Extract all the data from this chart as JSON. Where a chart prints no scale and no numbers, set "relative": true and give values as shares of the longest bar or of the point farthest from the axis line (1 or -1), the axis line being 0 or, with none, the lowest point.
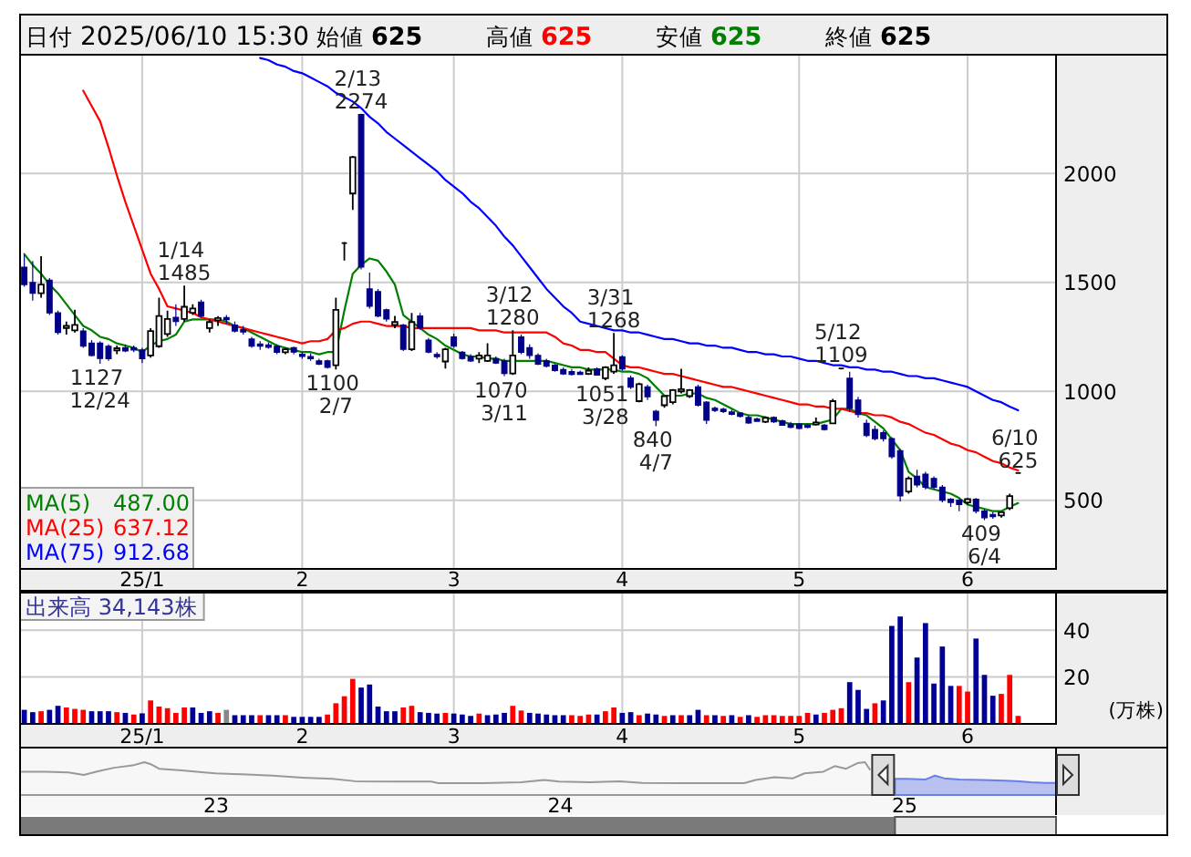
{
  "chart_data": [
    {
      "type": "other",
      "annotations": [
        "日付",
        "2025/06/10 15:30",
        "始値",
        "625",
        "高値",
        "625",
        "安値",
        "625",
        "終値",
        "625"
      ]
    },
    {
      "type": "candlestick",
      "categories": [
        null,
        null,
        null,
        null,
        null,
        null,
        null,
        null,
        null,
        null,
        null,
        null,
        null,
        null,
        "25/1",
        null,
        null,
        null,
        null,
        null,
        null,
        null,
        null,
        null,
        null,
        null,
        null,
        null,
        null,
        null,
        null,
        null,
        null,
        "2",
        null,
        null,
        null,
        null,
        null,
        null,
        null,
        null,
        null,
        null,
        null,
        null,
        null,
        null,
        null,
        null,
        null,
        "3",
        null,
        null,
        null,
        null,
        null,
        null,
        null,
        null,
        null,
        null,
        null,
        null,
        null,
        null,
        null,
        null,
        null,
        null,
        null,
        "4",
        null,
        null,
        null,
        null,
        null,
        null,
        null,
        null,
        null,
        null,
        null,
        null,
        null,
        null,
        null,
        null,
        null,
        null,
        null,
        null,
        "5",
        null,
        null,
        null,
        null,
        null,
        null,
        null,
        null,
        null,
        null,
        null,
        null,
        null,
        null,
        null,
        null,
        null,
        null,
        null,
        "6",
        null,
        null,
        null,
        null,
        null,
        null
      ],
      "ohlc": [
        [
          1570,
          1626,
          1480,
          1490
        ],
        [
          1500,
          1598,
          1416,
          1450
        ],
        [
          1450,
          1620,
          1430,
          1490
        ],
        [
          1510,
          1520,
          1350,
          1360
        ],
        [
          1360,
          1370,
          1260,
          1270
        ],
        [
          1290,
          1320,
          1260,
          1300
        ],
        [
          1280,
          1374,
          1270,
          1305
        ],
        [
          1277,
          1290,
          1200,
          1207
        ],
        [
          1221,
          1235,
          1160,
          1165
        ],
        [
          1221,
          1230,
          1127,
          1151
        ],
        [
          1207,
          1215,
          1140,
          1150
        ],
        [
          1190,
          1210,
          1170,
          1195
        ],
        [
          1200,
          1215,
          1180,
          1185
        ],
        [
          1200,
          1210,
          1180,
          1190
        ],
        [
          1190,
          1200,
          1130,
          1150
        ],
        [
          1165,
          1290,
          1155,
          1277
        ],
        [
          1207,
          1430,
          1200,
          1346
        ],
        [
          1263,
          1370,
          1250,
          1332
        ],
        [
          1340,
          1400,
          1300,
          1320
        ],
        [
          1332,
          1485,
          1320,
          1388
        ],
        [
          1360,
          1400,
          1350,
          1380
        ],
        [
          1410,
          1420,
          1340,
          1346
        ],
        [
          1290,
          1330,
          1270,
          1318
        ],
        [
          1330,
          1345,
          1300,
          1332
        ],
        [
          1335,
          1350,
          1310,
          1332
        ],
        [
          1304,
          1320,
          1270,
          1277
        ],
        [
          1280,
          1300,
          1260,
          1275
        ],
        [
          1240,
          1250,
          1200,
          1207
        ],
        [
          1215,
          1230,
          1190,
          1210
        ],
        [
          1210,
          1225,
          1195,
          1205
        ],
        [
          1207,
          1215,
          1170,
          1179
        ],
        [
          1179,
          1200,
          1170,
          1193
        ],
        [
          1200,
          1205,
          1170,
          1180
        ],
        [
          1170,
          1180,
          1150,
          1160
        ],
        [
          1160,
          1175,
          1140,
          1150
        ],
        [
          1140,
          1150,
          1120,
          1125
        ],
        [
          1140,
          1145,
          1105,
          1110
        ],
        [
          1120,
          1430,
          1100,
          1374
        ],
        [
          1680,
          1685,
          1600,
          1680
        ],
        [
          1908,
          2080,
          1833,
          2075
        ],
        [
          2270,
          2274,
          1560,
          1570
        ],
        [
          1470,
          1545,
          1380,
          1390
        ],
        [
          1458,
          1470,
          1340,
          1346
        ],
        [
          1374,
          1380,
          1320,
          1332
        ],
        [
          1305,
          1346,
          1290,
          1318
        ],
        [
          1304,
          1310,
          1185,
          1193
        ],
        [
          1193,
          1360,
          1185,
          1318
        ],
        [
          1346,
          1360,
          1282,
          1290
        ],
        [
          1235,
          1245,
          1175,
          1180
        ],
        [
          1165,
          1180,
          1150,
          1163
        ],
        [
          1137,
          1200,
          1105,
          1193
        ],
        [
          1250,
          1265,
          1200,
          1207
        ],
        [
          1179,
          1185,
          1145,
          1151
        ],
        [
          1160,
          1170,
          1135,
          1140
        ],
        [
          1150,
          1180,
          1130,
          1165
        ],
        [
          1140,
          1221,
          1135,
          1165
        ],
        [
          1150,
          1160,
          1125,
          1130
        ],
        [
          1140,
          1150,
          1070,
          1082
        ],
        [
          1082,
          1280,
          1075,
          1165
        ],
        [
          1249,
          1260,
          1170,
          1179
        ],
        [
          1200,
          1215,
          1150,
          1165
        ],
        [
          1165,
          1175,
          1120,
          1125
        ],
        [
          1140,
          1150,
          1110,
          1115
        ],
        [
          1120,
          1125,
          1090,
          1095
        ],
        [
          1100,
          1110,
          1075,
          1080
        ],
        [
          1090,
          1102,
          1072,
          1078
        ],
        [
          1085,
          1095,
          1075,
          1080
        ],
        [
          1080,
          1110,
          1075,
          1095
        ],
        [
          1103,
          1110,
          1072,
          1075
        ],
        [
          1060,
          1115,
          1051,
          1110
        ],
        [
          1090,
          1268,
          1080,
          1120
        ],
        [
          1158,
          1165,
          1095,
          1103
        ],
        [
          1061,
          1072,
          1010,
          1019
        ],
        [
          955,
          1040,
          950,
          1033
        ],
        [
          1020,
          1030,
          960,
          975
        ],
        [
          908,
          915,
          840,
          867
        ],
        [
          936,
          980,
          925,
          978
        ],
        [
          950,
          1010,
          940,
          1006
        ],
        [
          1000,
          1103,
          990,
          1010
        ],
        [
          978,
          1010,
          970,
          1006
        ],
        [
          1020,
          1030,
          930,
          936
        ],
        [
          950,
          955,
          850,
          867
        ],
        [
          920,
          930,
          905,
          915
        ],
        [
          915,
          925,
          900,
          910
        ],
        [
          905,
          915,
          890,
          895
        ],
        [
          900,
          905,
          880,
          885
        ],
        [
          880,
          890,
          850,
          855
        ],
        [
          870,
          880,
          860,
          865
        ],
        [
          860,
          885,
          855,
          878
        ],
        [
          880,
          885,
          855,
          860
        ],
        [
          865,
          870,
          842,
          845
        ],
        [
          850,
          860,
          830,
          835
        ],
        [
          850,
          855,
          825,
          830
        ],
        [
          845,
          850,
          830,
          835
        ],
        [
          850,
          880,
          843,
          855
        ],
        [
          845,
          850,
          820,
          825
        ],
        [
          853,
          965,
          850,
          955
        ],
        [
          1105,
          1109,
          1100,
          1105
        ],
        [
          1060,
          1090,
          905,
          922
        ],
        [
          960,
          975,
          880,
          894
        ],
        [
          853,
          870,
          790,
          797
        ],
        [
          825,
          842,
          775,
          783
        ],
        [
          810,
          820,
          770,
          783
        ],
        [
          783,
          790,
          690,
          700
        ],
        [
          728,
          735,
          495,
          520
        ],
        [
          540,
          610,
          530,
          600
        ],
        [
          610,
          640,
          560,
          570
        ],
        [
          620,
          631,
          550,
          560
        ],
        [
          600,
          610,
          550,
          560
        ],
        [
          560,
          570,
          490,
          500
        ],
        [
          505,
          510,
          470,
          490
        ],
        [
          500,
          505,
          450,
          480
        ],
        [
          490,
          510,
          480,
          505
        ],
        [
          505,
          510,
          440,
          450
        ],
        [
          450,
          460,
          409,
          420
        ],
        [
          435,
          445,
          415,
          425
        ],
        [
          430,
          450,
          420,
          445
        ],
        [
          464,
          530,
          455,
          519
        ],
        [
          625,
          625,
          625,
          625
        ]
      ],
      "series": [
        {
          "name": "MA(5)",
          "type": "line",
          "color": "#008000",
          "values": [
            1630,
            1580,
            1540,
            1490,
            1450,
            1400,
            1350,
            1300,
            1280,
            1250,
            1240,
            1220,
            1210,
            1200,
            1180,
            1210,
            1230,
            1240,
            1260,
            1320,
            1330,
            1330,
            1330,
            1330,
            1320,
            1300,
            1290,
            1270,
            1250,
            1230,
            1210,
            1200,
            1190,
            1180,
            1180,
            1170,
            1180,
            1180,
            1370,
            1540,
            1580,
            1610,
            1600,
            1550,
            1490,
            1350,
            1320,
            1290,
            1260,
            1240,
            1210,
            1190,
            1170,
            1160,
            1160,
            1150,
            1150,
            1140,
            1140,
            1140,
            1140,
            1140,
            1140,
            1130,
            1120,
            1110,
            1110,
            1100,
            1100,
            1100,
            1100,
            1090,
            1090,
            1080,
            1060,
            1020,
            980,
            980,
            980,
            990,
            990,
            970,
            960,
            940,
            920,
            900,
            890,
            890,
            880,
            870,
            860,
            850,
            850,
            850,
            850,
            860,
            870,
            920,
            920,
            900,
            890,
            860,
            830,
            780,
            730,
            630,
            600,
            560,
            550,
            540,
            530,
            510,
            480,
            470,
            460,
            450,
            450,
            470,
            487
          ]
        },
        {
          "name": "MA(25)",
          "type": "line",
          "color": "#ff0000",
          "values": [
            null,
            null,
            null,
            null,
            null,
            null,
            null,
            2380,
            2310,
            2240,
            2120,
            1990,
            1870,
            1760,
            1650,
            1540,
            1470,
            1390,
            1380,
            1370,
            1360,
            1340,
            1330,
            1320,
            1310,
            1300,
            1290,
            1280,
            1270,
            1260,
            1250,
            1240,
            1230,
            1220,
            1230,
            1230,
            1240,
            1280,
            1290,
            1310,
            1320,
            1320,
            1310,
            1300,
            1300,
            1300,
            1290,
            1290,
            1290,
            1290,
            1290,
            1290,
            1290,
            1290,
            1280,
            1280,
            1280,
            1270,
            1270,
            1270,
            1270,
            1270,
            1270,
            1250,
            1220,
            1210,
            1190,
            1190,
            1180,
            1180,
            1150,
            1120,
            1110,
            1110,
            1100,
            1090,
            1080,
            1080,
            1070,
            1060,
            1050,
            1040,
            1030,
            1020,
            1020,
            1010,
            1000,
            990,
            980,
            970,
            960,
            950,
            940,
            940,
            930,
            930,
            920,
            920,
            910,
            900,
            900,
            890,
            890,
            880,
            860,
            850,
            830,
            810,
            800,
            780,
            760,
            750,
            730,
            720,
            700,
            680,
            670,
            650,
            637.12
          ]
        },
        {
          "name": "MA(75)",
          "type": "line",
          "color": "#0000ff",
          "values": [
            null,
            null,
            null,
            null,
            null,
            null,
            null,
            null,
            null,
            null,
            null,
            null,
            null,
            null,
            null,
            null,
            null,
            null,
            null,
            null,
            null,
            null,
            null,
            null,
            null,
            null,
            null,
            null,
            2530,
            2520,
            2500,
            2490,
            2470,
            2460,
            2440,
            2420,
            2400,
            2370,
            2350,
            2330,
            2300,
            2260,
            2230,
            2190,
            2160,
            2130,
            2100,
            2070,
            2040,
            2010,
            1970,
            1940,
            1910,
            1870,
            1840,
            1800,
            1760,
            1710,
            1670,
            1620,
            1570,
            1520,
            1470,
            1430,
            1390,
            1360,
            1320,
            1310,
            1300,
            1290,
            1280,
            1280,
            1270,
            1270,
            1260,
            1250,
            1240,
            1240,
            1230,
            1220,
            1220,
            1210,
            1210,
            1200,
            1200,
            1190,
            1180,
            1180,
            1170,
            1170,
            1160,
            1160,
            1150,
            1140,
            1140,
            1130,
            1120,
            1120,
            1110,
            1110,
            1100,
            1100,
            1090,
            1090,
            1080,
            1070,
            1070,
            1060,
            1060,
            1050,
            1040,
            1030,
            1020,
            1000,
            980,
            960,
            950,
            930,
            912.68
          ]
        }
      ],
      "ylim": [
        185,
        2545
      ],
      "yticks": [
        500,
        1000,
        1500,
        2000
      ],
      "grid": true,
      "legend": "bottom left",
      "annotations": [
        "487.00",
        "637.12",
        "912.68",
        {
          "text": "1127 12/24",
          "y": 1127
        },
        {
          "text": "1/14 1485",
          "y": 1485
        },
        {
          "text": "1100 2/7",
          "y": 1100
        },
        {
          "text": "2/13 2274",
          "y": 2274
        },
        {
          "text": "1070 3/11",
          "y": 1070
        },
        {
          "text": "3/12 1280",
          "y": 1280
        },
        {
          "text": "1051 3/28",
          "y": 1051
        },
        {
          "text": "3/31 1268",
          "y": 1268
        },
        {
          "text": "840 4/7",
          "y": 840
        },
        {
          "text": "5/12 1109",
          "y": 1109
        },
        {
          "text": "409 6/4",
          "y": 409
        },
        {
          "text": "6/10 625",
          "y": 625
        }
      ]
    },
    {
      "type": "bar",
      "title": "出来高 34,143株",
      "ylabel": "(万株)",
      "categories": [
        null,
        null,
        null,
        null,
        null,
        null,
        null,
        null,
        null,
        null,
        null,
        null,
        null,
        null,
        "25/1",
        null,
        null,
        null,
        null,
        null,
        null,
        null,
        null,
        null,
        null,
        null,
        null,
        null,
        null,
        null,
        null,
        null,
        null,
        "2",
        null,
        null,
        null,
        null,
        null,
        null,
        null,
        null,
        null,
        null,
        null,
        null,
        null,
        null,
        null,
        null,
        null,
        "3",
        null,
        null,
        null,
        null,
        null,
        null,
        null,
        null,
        null,
        null,
        null,
        null,
        null,
        null,
        null,
        null,
        null,
        null,
        null,
        "4",
        null,
        null,
        null,
        null,
        null,
        null,
        null,
        null,
        null,
        null,
        null,
        null,
        null,
        null,
        null,
        null,
        null,
        null,
        null,
        null,
        "5",
        null,
        null,
        null,
        null,
        null,
        null,
        null,
        null,
        null,
        null,
        null,
        null,
        null,
        null,
        null,
        null,
        null,
        null,
        null,
        "6",
        null,
        null,
        null,
        null,
        null,
        null
      ],
      "values": [
        6,
        5,
        5.4,
        6,
        7.7,
        7,
        6.4,
        6,
        5.4,
        5.4,
        5.4,
        5,
        4.7,
        4,
        4.5,
        10,
        7.4,
        6.7,
        4.7,
        7,
        7,
        4.7,
        5.4,
        4.7,
        6,
        3.7,
        3.7,
        3.7,
        3.7,
        3.7,
        3.7,
        3.7,
        3,
        3,
        3,
        3,
        4,
        8.8,
        11.8,
        19.2,
        15.5,
        16.8,
        7.4,
        5.4,
        5.4,
        7,
        7.7,
        5,
        4.7,
        4.4,
        4.7,
        4.4,
        4,
        3.4,
        4.4,
        3.7,
        4,
        4.7,
        7.7,
        5.7,
        4.7,
        4.4,
        4,
        3.7,
        3.7,
        3.7,
        3.4,
        4,
        4,
        5.4,
        7,
        4.7,
        5,
        3.7,
        4.4,
        4,
        3.4,
        3.7,
        3.7,
        3.7,
        6,
        3.7,
        3.7,
        3.4,
        3.7,
        3,
        3.7,
        3,
        3.7,
        3.7,
        3.4,
        3.4,
        3.4,
        4.7,
        4,
        4.7,
        6,
        6.7,
        17.8,
        14.5,
        6.4,
        8.8,
        10,
        41.8,
        45.8,
        17.8,
        28.3,
        43,
        17.2,
        33,
        16.2,
        16.2,
        13.8,
        36.4,
        20.9,
        12,
        12.8,
        20.9,
        3.4
      ],
      "colors": [
        "#000099",
        "#000099",
        "#ff0000",
        "#000099",
        "#000099",
        "#ff0000",
        "#ff0000",
        "#ff0000",
        "#000099",
        "#000099",
        "#000099",
        "#ff0000",
        "#000099",
        "#ff0000",
        "#000099",
        "#ff0000",
        "#ff0000",
        "#ff0000",
        "#ff0000",
        "#ff0000",
        "#000099",
        "#000099",
        "#000099",
        "#ff0000",
        "#888888",
        "#000099",
        "#000099",
        "#000099",
        "#ff0000",
        "#000099",
        "#000099",
        "#ff0000",
        "#000099",
        "#000099",
        "#000099",
        "#000099",
        "#ff0000",
        "#ff0000",
        "#ff0000",
        "#ff0000",
        "#000099",
        "#000099",
        "#000099",
        "#000099",
        "#000099",
        "#ff0000",
        "#ff0000",
        "#000099",
        "#000099",
        "#000099",
        "#ff0000",
        "#000099",
        "#000099",
        "#000099",
        "#ff0000",
        "#000099",
        "#000099",
        "#000099",
        "#ff0000",
        "#ff0000",
        "#000099",
        "#000099",
        "#000099",
        "#000099",
        "#000099",
        "#ff0000",
        "#ff0000",
        "#ff0000",
        "#000099",
        "#ff0000",
        "#ff0000",
        "#000099",
        "#000099",
        "#ff0000",
        "#000099",
        "#000099",
        "#ff0000",
        "#000099",
        "#ff0000",
        "#000099",
        "#000099",
        "#ff0000",
        "#000099",
        "#ff0000",
        "#000099",
        "#ff0000",
        "#000099",
        "#ff0000",
        "#ff0000",
        "#ff0000",
        "#ff0000",
        "#ff0000",
        "#ff0000",
        "#ff0000",
        "#000099",
        "#ff0000",
        "#ff0000",
        "#ff0000",
        "#000099",
        "#000099",
        "#000099",
        "#ff0000",
        "#000099",
        "#000099",
        "#000099",
        "#ff0000",
        "#000099",
        "#000099",
        "#000099",
        "#000099",
        "#000099",
        "#ff0000",
        "#ff0000",
        "#000099",
        "#000099",
        "#000099",
        "#ff0000",
        "#ff0000",
        "#ff0000"
      ],
      "ylim": [
        0,
        56
      ],
      "yticks": [
        20,
        40
      ],
      "grid": true
    },
    {
      "type": "area",
      "relative": true,
      "xlim": [
        2022.43,
        2025.44
      ],
      "xticks": [
        {
          "value": 2023,
          "label": "23"
        },
        {
          "value": 2024,
          "label": "24"
        },
        {
          "value": 2025,
          "label": "25"
        }
      ],
      "series": [
        {
          "type": "line",
          "color": "#999999",
          "x": [
            2022.433,
            2022.505,
            2022.571,
            2022.615,
            2022.659,
            2022.703,
            2022.757,
            2022.791,
            2022.812,
            2022.834,
            2022.9,
            2022.966,
            2022.999,
            2023.075,
            2023.163,
            2023.251,
            2023.338,
            2023.404,
            2023.514,
            2023.624,
            2023.646,
            2023.777,
            2023.887,
            2023.953,
            2023.996,
            2024.084,
            2024.172,
            2024.238,
            2024.347,
            2024.534,
            2024.567,
            2024.622,
            2024.676,
            2024.709,
            2024.764,
            2024.797,
            2024.83,
            2024.863,
            2024.885,
            2024.9
          ],
          "values": [
            0.71,
            0.71,
            0.69,
            0.61,
            0.73,
            0.83,
            0.9,
            1,
            0.93,
            0.8,
            0.75,
            0.69,
            0.66,
            0.63,
            0.59,
            0.53,
            0.49,
            0.42,
            0.41,
            0.41,
            0.36,
            0.36,
            0.39,
            0.46,
            0.41,
            0.39,
            0.42,
            0.37,
            0.36,
            0.36,
            0.46,
            0.54,
            0.51,
            0.66,
            0.71,
            0.88,
            0.8,
            0.97,
            1,
            0.76
          ]
        },
        {
          "type": "area",
          "color": "#6a7fe6",
          "x": [
            2024.972,
            2025.005,
            2025.06,
            2025.088,
            2025.115,
            2025.159,
            2025.225,
            2025.29,
            2025.334,
            2025.367,
            2025.41,
            2025.44
          ],
          "values": [
            0.49,
            0.49,
            0.47,
            0.59,
            0.51,
            0.47,
            0.46,
            0.44,
            0.42,
            0.39,
            0.37,
            0.37
          ]
        }
      ]
    }
  ]
}
